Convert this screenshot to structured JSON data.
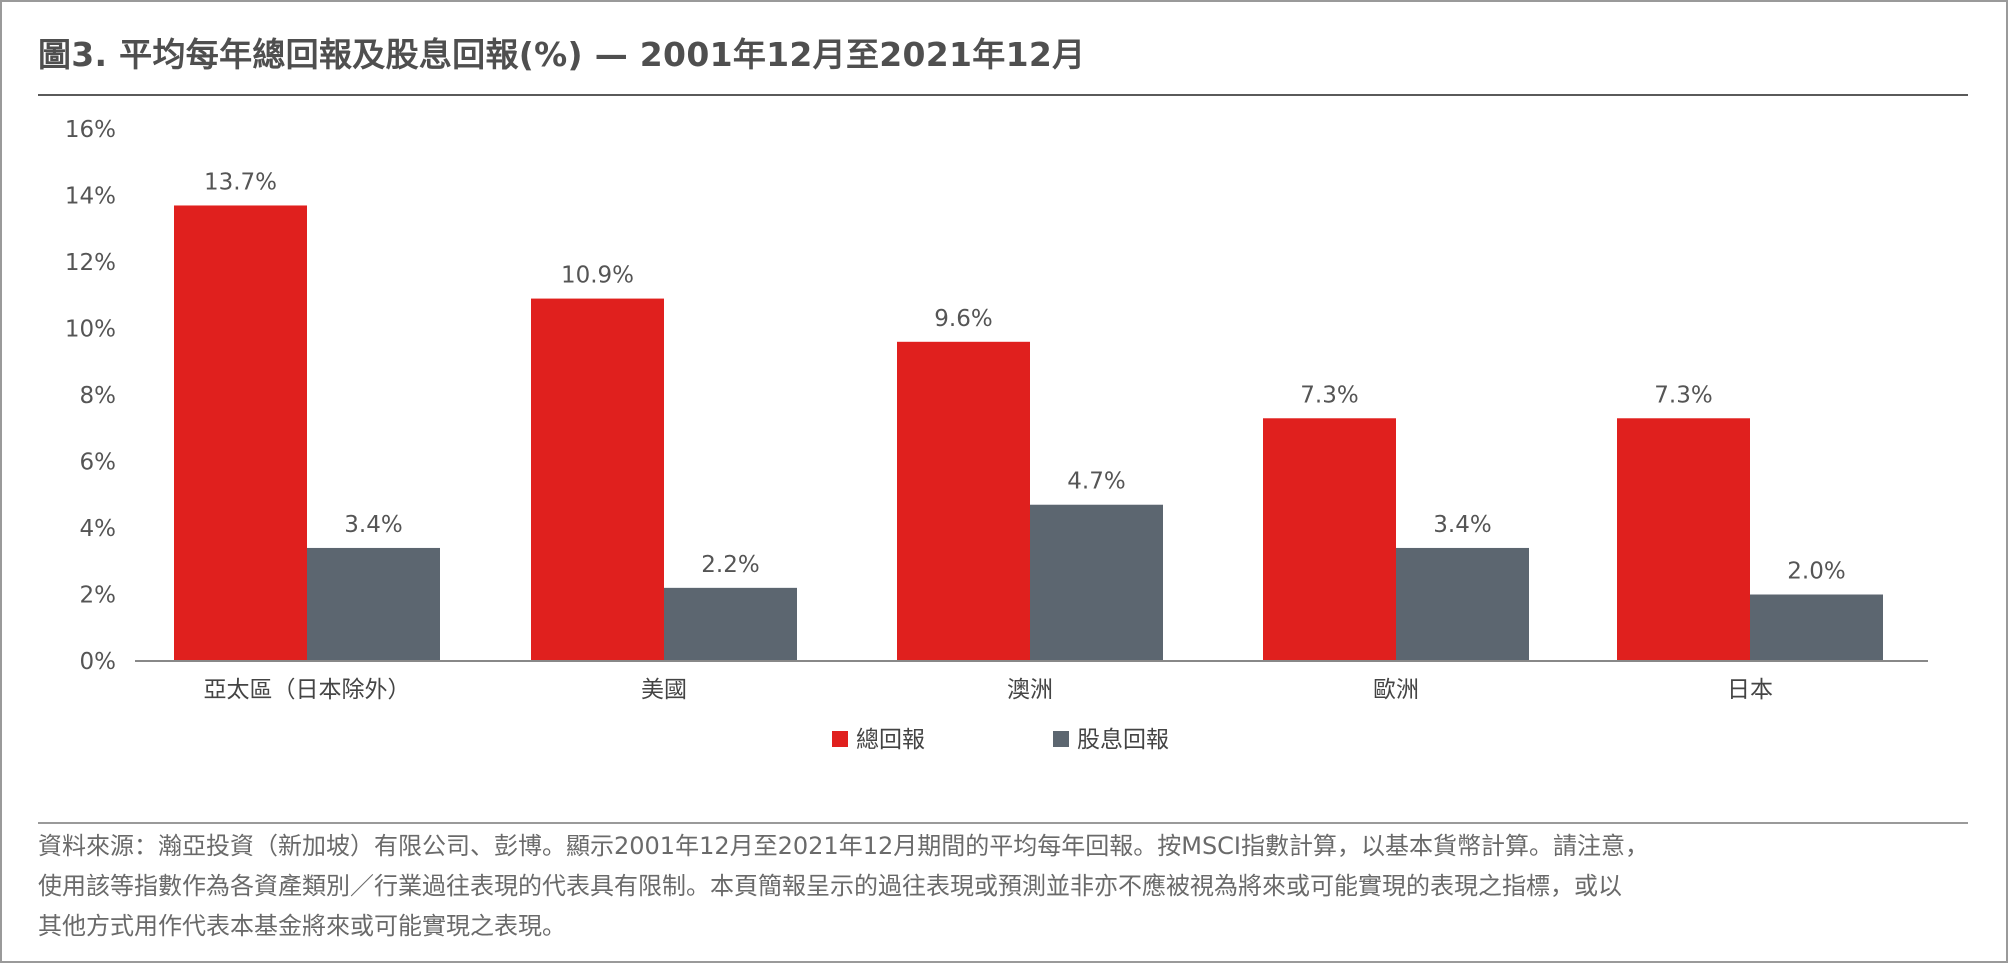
{
  "title": "圖3. 平均每年總回報及股息回報(%) — 2001年12月至2021年12月",
  "source_lines": [
    "資料來源：瀚亞投資（新加坡）有限公司、彭博。顯示2001年12月至2021年12月期間的平均每年回報。按MSCI指數計算，以基本貨幣計算。請注意，",
    "使用該等指數作為各資產類別／行業過往表現的代表具有限制。本頁簡報呈示的過往表現或預測並非亦不應被視為將來或可能實現的表現之指標，或以",
    "其他方式用作代表本基金將來或可能實現之表現。"
  ],
  "chart_data": {
    "type": "bar",
    "title": "",
    "xlabel": "",
    "ylabel": "",
    "categories": [
      "亞太區（日本除外）",
      "美國",
      "澳洲",
      "歐洲",
      "日本"
    ],
    "series": [
      {
        "name": "總回報",
        "values": [
          13.7,
          10.9,
          9.6,
          7.3,
          7.3
        ],
        "labels": [
          "13.7%",
          "10.9%",
          "9.6%",
          "7.3%",
          "7.3%"
        ],
        "color": "#e0201e"
      },
      {
        "name": "股息回報",
        "values": [
          3.4,
          2.2,
          4.7,
          3.4,
          2.0
        ],
        "labels": [
          "3.4%",
          "2.2%",
          "4.7%",
          "3.4%",
          "2.0%"
        ],
        "color": "#5c6670"
      }
    ],
    "ylim": [
      0,
      16
    ],
    "yticks": [
      "0%",
      "2%",
      "4%",
      "6%",
      "8%",
      "10%",
      "12%",
      "14%",
      "16%"
    ],
    "ytick_values": [
      0,
      2,
      4,
      6,
      8,
      10,
      12,
      14,
      16
    ],
    "grid": false,
    "legend": "bottom-center"
  }
}
